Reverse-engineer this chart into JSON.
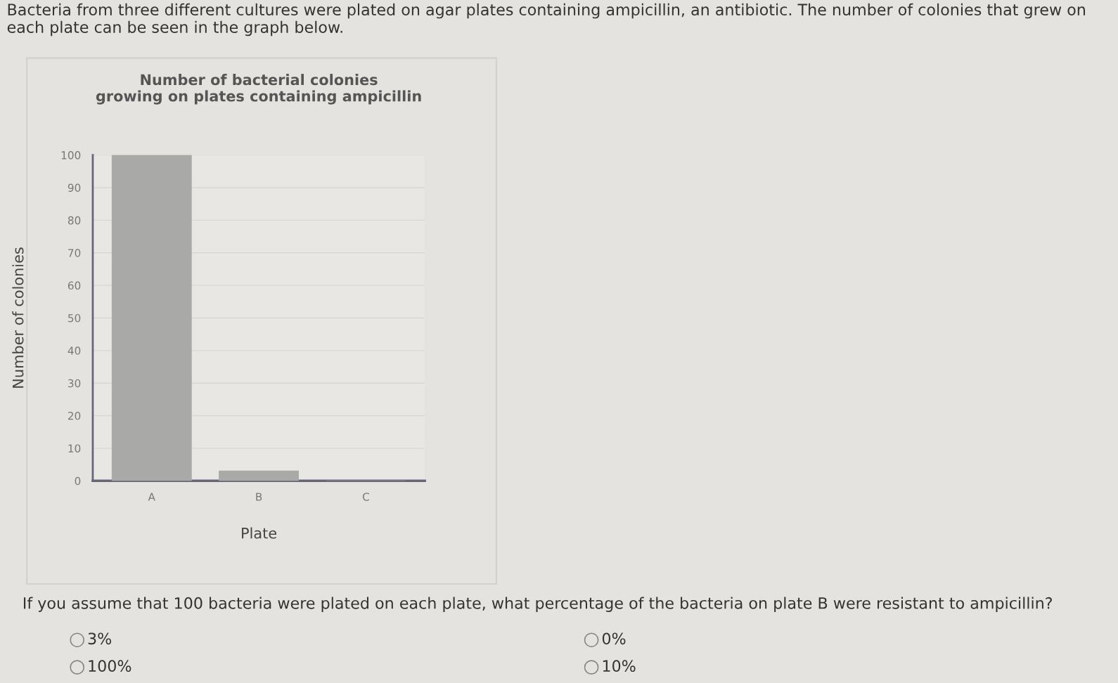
{
  "chart_data": {
    "type": "bar",
    "title": "Number of bacterial colonies\ngrowing on plates containing ampicillin",
    "xlabel": "Plate",
    "ylabel": "Number of colonies",
    "categories": [
      "A",
      "B",
      "C"
    ],
    "values": [
      100,
      3,
      0
    ],
    "color": "#a9a9a7",
    "ylim": [
      0,
      100
    ],
    "yticks": [
      0,
      10,
      20,
      30,
      40,
      50,
      60,
      70,
      80,
      90,
      100
    ],
    "grid": "y",
    "annotations": [
      "Bacteria from three different cultures were plated on agar plates containing ampicillin, an antibiotic. The number of colonies that grew on each plate can be seen in the graph below.",
      "If you assume that 100 bacteria were plated on each plate, what percentage of the bacteria on plate B were resistant to ampicillin?",
      "3%",
      "0%",
      "100%",
      "10%"
    ]
  }
}
